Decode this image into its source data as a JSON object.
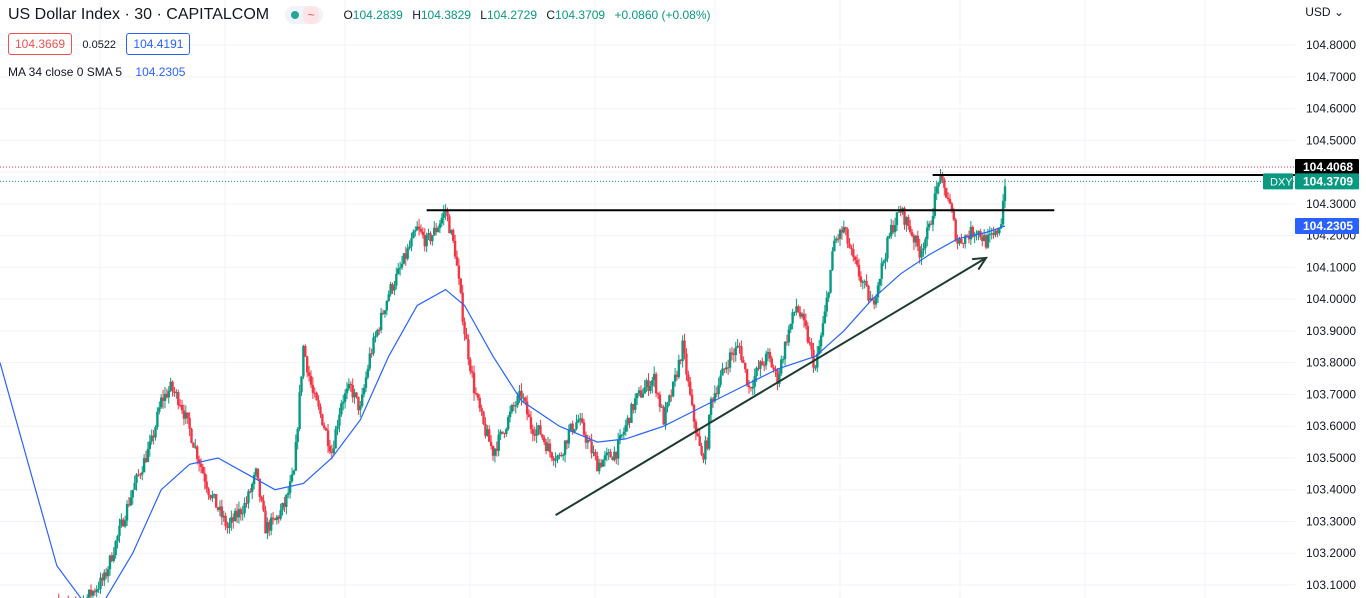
{
  "header": {
    "symbol": "US Dollar Index · 30 · CAPITALCOM",
    "chip_icon": "~",
    "open_label": "O",
    "open": "104.2839",
    "high_label": "H",
    "high": "104.3829",
    "low_label": "L",
    "low": "104.2729",
    "close_label": "C",
    "close": "104.3709",
    "change": "+0.0860 (+0.08%)",
    "sell": "104.3669",
    "spread": "0.0522",
    "buy": "104.4191",
    "indicator": "MA 34 close 0 SMA 5",
    "indicator_value": "104.2305",
    "currency": "USD"
  },
  "price_tags": {
    "resistance": "104.4068",
    "symbol_tag": "DXY",
    "last": "104.3709",
    "ma": "104.2305"
  },
  "colors": {
    "up": "#089981",
    "down": "#f23645",
    "ma": "#2962ff",
    "lines": "#000000",
    "arrow": "#1e3b2f"
  },
  "chart_data": {
    "type": "candlestick",
    "ylim": [
      103.05,
      104.88
    ],
    "yticks": [
      "103.1000",
      "103.2000",
      "103.3000",
      "103.4000",
      "103.5000",
      "103.6000",
      "103.7000",
      "103.8000",
      "103.9000",
      "104.0000",
      "104.1000",
      "104.2000",
      "104.3000",
      "104.4000",
      "104.5000",
      "104.6000",
      "104.7000",
      "104.8000"
    ],
    "anchors": [
      [
        0,
        103.05
      ],
      [
        10,
        103.02
      ],
      [
        25,
        103.12
      ],
      [
        40,
        103.4
      ],
      [
        50,
        103.55
      ],
      [
        55,
        103.68
      ],
      [
        60,
        103.72
      ],
      [
        65,
        103.68
      ],
      [
        72,
        103.55
      ],
      [
        80,
        103.4
      ],
      [
        90,
        103.28
      ],
      [
        100,
        103.36
      ],
      [
        105,
        103.45
      ],
      [
        110,
        103.28
      ],
      [
        115,
        103.3
      ],
      [
        120,
        103.35
      ],
      [
        125,
        103.45
      ],
      [
        130,
        103.85
      ],
      [
        135,
        103.7
      ],
      [
        140,
        103.62
      ],
      [
        145,
        103.52
      ],
      [
        150,
        103.68
      ],
      [
        155,
        103.72
      ],
      [
        160,
        103.65
      ],
      [
        165,
        103.82
      ],
      [
        170,
        103.92
      ],
      [
        175,
        104.02
      ],
      [
        180,
        104.08
      ],
      [
        185,
        104.15
      ],
      [
        190,
        104.22
      ],
      [
        195,
        104.18
      ],
      [
        200,
        104.22
      ],
      [
        205,
        104.28
      ],
      [
        210,
        104.15
      ],
      [
        212,
        104.05
      ],
      [
        215,
        103.9
      ],
      [
        220,
        103.72
      ],
      [
        225,
        103.6
      ],
      [
        230,
        103.52
      ],
      [
        235,
        103.58
      ],
      [
        240,
        103.65
      ],
      [
        245,
        103.7
      ],
      [
        250,
        103.6
      ],
      [
        255,
        103.58
      ],
      [
        260,
        103.52
      ],
      [
        265,
        103.5
      ],
      [
        270,
        103.58
      ],
      [
        275,
        103.62
      ],
      [
        280,
        103.55
      ],
      [
        285,
        103.48
      ],
      [
        290,
        103.5
      ],
      [
        295,
        103.52
      ],
      [
        300,
        103.6
      ],
      [
        305,
        103.68
      ],
      [
        310,
        103.72
      ],
      [
        315,
        103.75
      ],
      [
        320,
        103.62
      ],
      [
        325,
        103.72
      ],
      [
        330,
        103.85
      ],
      [
        335,
        103.65
      ],
      [
        340,
        103.5
      ],
      [
        343,
        103.55
      ],
      [
        345,
        103.68
      ],
      [
        350,
        103.75
      ],
      [
        355,
        103.82
      ],
      [
        360,
        103.85
      ],
      [
        365,
        103.72
      ],
      [
        370,
        103.78
      ],
      [
        375,
        103.82
      ],
      [
        380,
        103.75
      ],
      [
        385,
        103.88
      ],
      [
        390,
        103.98
      ],
      [
        395,
        103.9
      ],
      [
        400,
        103.78
      ],
      [
        405,
        103.95
      ],
      [
        410,
        104.18
      ],
      [
        415,
        104.22
      ],
      [
        420,
        104.12
      ],
      [
        425,
        104.05
      ],
      [
        430,
        103.98
      ],
      [
        435,
        104.1
      ],
      [
        440,
        104.22
      ],
      [
        445,
        104.28
      ],
      [
        450,
        104.22
      ],
      [
        455,
        104.15
      ],
      [
        460,
        104.22
      ],
      [
        465,
        104.38
      ],
      [
        470,
        104.32
      ],
      [
        475,
        104.18
      ],
      [
        480,
        104.2
      ],
      [
        485,
        104.22
      ],
      [
        490,
        104.18
      ],
      [
        495,
        104.2
      ],
      [
        498,
        104.25
      ],
      [
        500,
        104.37
      ]
    ],
    "ma": [
      [
        -30,
        103.8
      ],
      [
        0,
        103.16
      ],
      [
        20,
        103.0
      ],
      [
        40,
        103.2
      ],
      [
        55,
        103.4
      ],
      [
        70,
        103.48
      ],
      [
        85,
        103.5
      ],
      [
        100,
        103.45
      ],
      [
        115,
        103.4
      ],
      [
        130,
        103.42
      ],
      [
        145,
        103.5
      ],
      [
        160,
        103.62
      ],
      [
        175,
        103.82
      ],
      [
        190,
        103.98
      ],
      [
        205,
        104.03
      ],
      [
        215,
        103.98
      ],
      [
        230,
        103.82
      ],
      [
        245,
        103.68
      ],
      [
        265,
        103.6
      ],
      [
        285,
        103.55
      ],
      [
        300,
        103.56
      ],
      [
        320,
        103.6
      ],
      [
        340,
        103.66
      ],
      [
        360,
        103.72
      ],
      [
        380,
        103.78
      ],
      [
        400,
        103.82
      ],
      [
        415,
        103.9
      ],
      [
        430,
        104.0
      ],
      [
        445,
        104.08
      ],
      [
        460,
        104.14
      ],
      [
        475,
        104.19
      ],
      [
        490,
        104.21
      ],
      [
        500,
        104.23
      ]
    ],
    "x_domain": [
      -30,
      500
    ],
    "resistance_level": 104.4068,
    "trendline_horizontal": [
      [
        195,
        104.28
      ],
      [
        526,
        104.28
      ]
    ],
    "trendline_ascending": [
      [
        263,
        103.32
      ],
      [
        490,
        104.13
      ]
    ]
  }
}
